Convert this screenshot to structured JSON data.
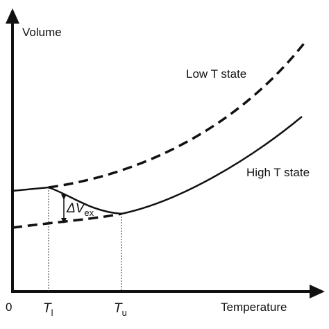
{
  "axes": {
    "y_label": "Volume",
    "x_label": "Temperature",
    "origin": "0"
  },
  "markers": [
    {
      "symbol": "T",
      "subscript": "l"
    },
    {
      "symbol": "T",
      "subscript": "u"
    }
  ],
  "annotations": {
    "low_state": "Low T state",
    "high_state": "High T state",
    "delta": {
      "symbol": "ΔV",
      "subscript": "ex"
    }
  }
}
